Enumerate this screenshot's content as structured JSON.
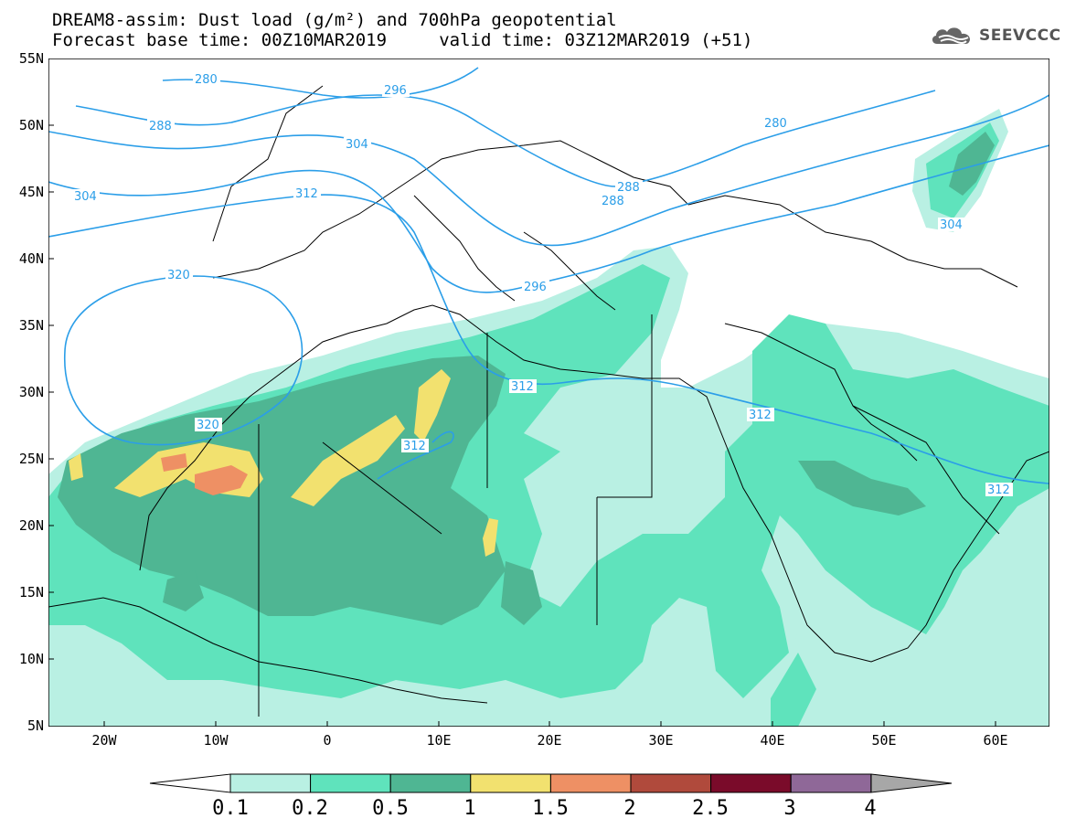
{
  "header": {
    "title_line1": "DREAM8-assim: Dust load (g/m²) and 700hPa geopotential",
    "title_line2": "Forecast base time: 00Z10MAR2019     valid time: 03Z12MAR2019 (+51)",
    "logo_text": "SEEVCCC",
    "logo_icon": "cloud-icon"
  },
  "map": {
    "lat_labels": [
      "55N",
      "50N",
      "45N",
      "40N",
      "35N",
      "30N",
      "25N",
      "20N",
      "15N",
      "10N",
      "5N"
    ],
    "lon_labels": [
      "20W",
      "10W",
      "0",
      "10E",
      "20E",
      "30E",
      "40E",
      "50E",
      "60E"
    ],
    "contour_labels": [
      "280",
      "296",
      "280",
      "288",
      "304",
      "312",
      "288",
      "288",
      "304",
      "320",
      "296",
      "312",
      "320",
      "312",
      "312",
      "312",
      "304"
    ]
  },
  "colorbar": {
    "labels": [
      "0.1",
      "0.2",
      "0.5",
      "1",
      "1.5",
      "2",
      "2.5",
      "3",
      "4"
    ],
    "colors": [
      "#b9f0e3",
      "#5fe3bc",
      "#4fb693",
      "#f2e16f",
      "#ee9064",
      "#b04a3c",
      "#7a0b2a",
      "#8f6898",
      "#a7a7a7"
    ],
    "left_triangle_color": "#ffffff"
  },
  "colors": {
    "contour": "#2b9ee8",
    "coast": "#000000",
    "dust_01": "#b9f0e3",
    "dust_02": "#5fe3bc",
    "dust_05": "#4fb693",
    "dust_1": "#f2e16f",
    "dust_15": "#ee9064"
  }
}
